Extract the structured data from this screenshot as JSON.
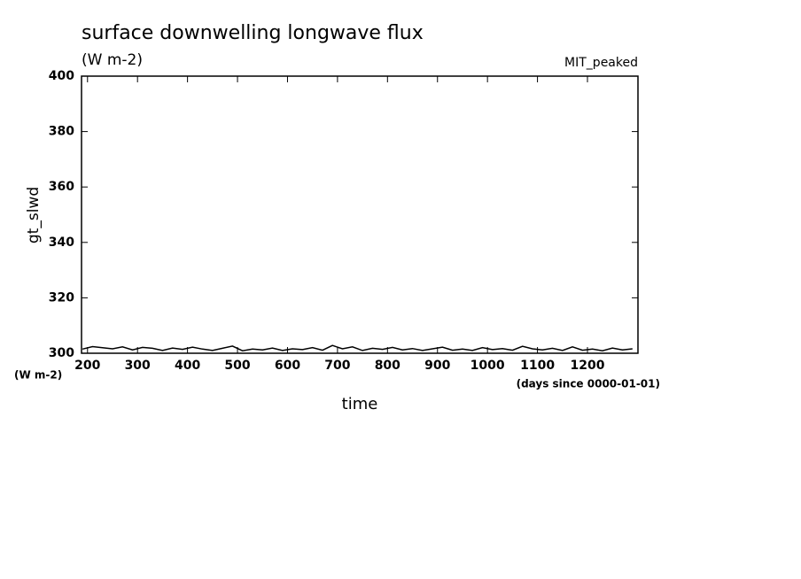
{
  "chart_data": {
    "type": "line",
    "title": "surface downwelling longwave flux",
    "subtitle": "(W m-2)",
    "annotation": "MIT_peaked",
    "ylabel": "gt_slwd",
    "xlabel": "time",
    "yunit": "(W m-2)",
    "xunit": "(days since 0000-01-01)",
    "x": [
      190,
      210,
      230,
      250,
      270,
      290,
      310,
      330,
      350,
      370,
      390,
      410,
      430,
      450,
      470,
      490,
      510,
      530,
      550,
      570,
      590,
      610,
      630,
      650,
      670,
      690,
      710,
      730,
      750,
      770,
      790,
      810,
      830,
      850,
      870,
      890,
      910,
      930,
      950,
      970,
      990,
      1010,
      1030,
      1050,
      1070,
      1090,
      1110,
      1130,
      1150,
      1170,
      1190,
      1210,
      1230,
      1250,
      1270,
      1290
    ],
    "series": [
      {
        "color": "#000000",
        "values": [
          301.5,
          302.4,
          302.0,
          301.6,
          302.3,
          301.2,
          302.1,
          301.8,
          301.0,
          301.9,
          301.4,
          302.2,
          301.5,
          301.0,
          301.8,
          302.6,
          300.9,
          301.5,
          301.2,
          301.9,
          301.0,
          301.6,
          301.3,
          302.0,
          301.1,
          302.8,
          301.6,
          302.3,
          301.0,
          301.8,
          301.4,
          302.1,
          301.2,
          301.7,
          301.0,
          301.6,
          302.2,
          301.1,
          301.5,
          301.0,
          302.0,
          301.3,
          301.7,
          301.1,
          302.5,
          301.6,
          301.2,
          301.8,
          301.0,
          302.3,
          301.1,
          301.5,
          300.9,
          301.9,
          301.2,
          301.6
        ]
      }
    ],
    "xlim": [
      188,
      1301
    ],
    "xticks": [
      200,
      300,
      400,
      500,
      600,
      700,
      800,
      900,
      1000,
      1100,
      1200
    ],
    "ylim": [
      300,
      400
    ],
    "yticks": [
      300,
      320,
      340,
      360,
      380,
      400
    ]
  }
}
